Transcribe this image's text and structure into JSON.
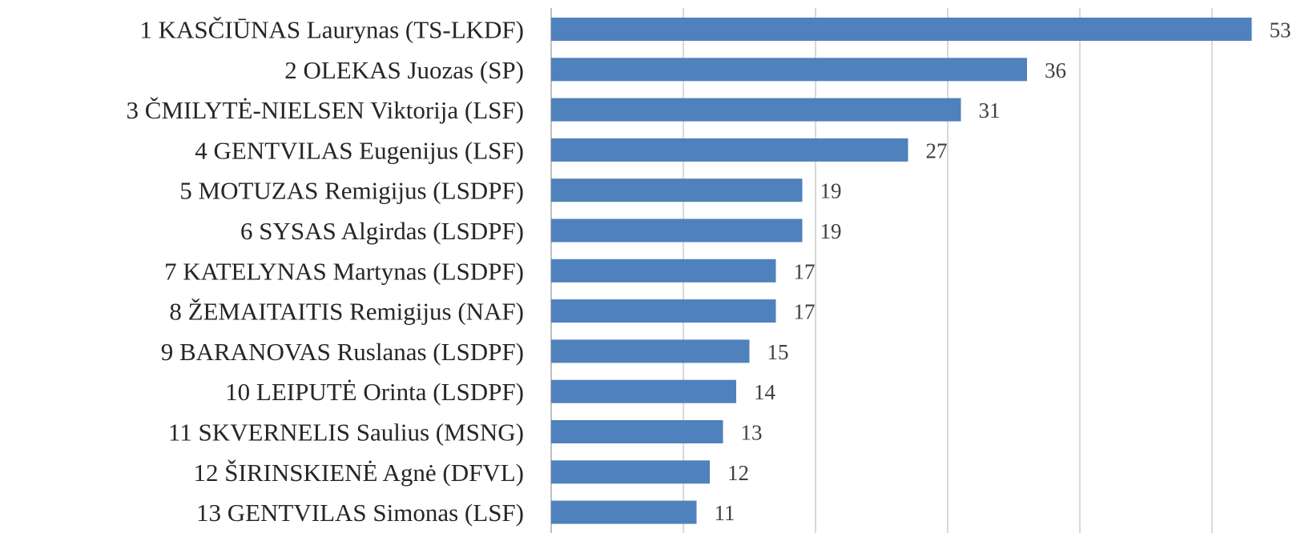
{
  "chart_data": {
    "type": "bar",
    "orientation": "horizontal",
    "categories": [
      "1 KASČIŪNAS Laurynas (TS-LKDF)",
      "2 OLEKAS Juozas (SP)",
      "3 ČMILYTĖ-NIELSEN Viktorija (LSF)",
      "4 GENTVILAS Eugenijus (LSF)",
      "5 MOTUZAS Remigijus (LSDPF)",
      "6 SYSAS Algirdas (LSDPF)",
      "7 KATELYNAS Martynas (LSDPF)",
      "8 ŽEMAITAITIS Remigijus (NAF)",
      "9 BARANOVAS Ruslanas (LSDPF)",
      "10 LEIPUTĖ Orinta (LSDPF)",
      "11 SKVERNELIS Saulius  (MSNG)",
      "12 ŠIRINSKIENĖ Agnė (DFVL)",
      "13 GENTVILAS Simonas (LSF)"
    ],
    "values": [
      53,
      36,
      31,
      27,
      19,
      19,
      17,
      17,
      15,
      14,
      13,
      12,
      11
    ],
    "value_labels": [
      "53",
      "36",
      "31",
      "27",
      "19",
      "19",
      "17",
      "17",
      "15",
      "14",
      "13",
      "12",
      "11"
    ],
    "xlim": [
      0,
      57
    ],
    "gridline_step": 10,
    "grid": true,
    "legend": "none",
    "bar_color": "#4f81bd"
  }
}
